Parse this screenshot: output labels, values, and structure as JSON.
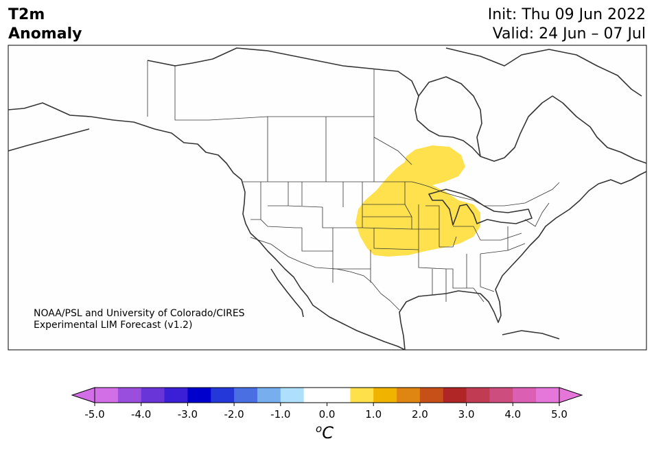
{
  "header": {
    "title_line1": "T2m",
    "title_line2": "Anomaly",
    "init": "Init: Thu 09 Jun 2022",
    "valid": "Valid: 24 Jun – 07 Jul"
  },
  "credit": {
    "line1": "NOAA/PSL and University of Colorado/CIRES",
    "line2": "Experimental LIM Forecast (v1.2)"
  },
  "colorbar": {
    "unit_sup": "o",
    "unit": "C",
    "tick_labels": [
      "-5.0",
      "-4.0",
      "-3.0",
      "-2.0",
      "-1.0",
      "0.0",
      "1.0",
      "2.0",
      "3.0",
      "4.0",
      "5.0"
    ],
    "colors": [
      "#d36fe6",
      "#9a4edc",
      "#6935d8",
      "#3a1fd6",
      "#0000cc",
      "#2437d9",
      "#4a6fe2",
      "#77afee",
      "#aee0fb",
      "#ffffff",
      "#ffffff",
      "#fde04a",
      "#f0b400",
      "#de8512",
      "#c65018",
      "#b02626",
      "#c13c53",
      "#cd4d7f",
      "#db60b3",
      "#e677da"
    ],
    "under_color": "#d36fe6",
    "over_color": "#e677da"
  },
  "map": {
    "anomaly_color": "#ffe14d",
    "land_color": "#fefefe",
    "line_color": "#333333"
  }
}
